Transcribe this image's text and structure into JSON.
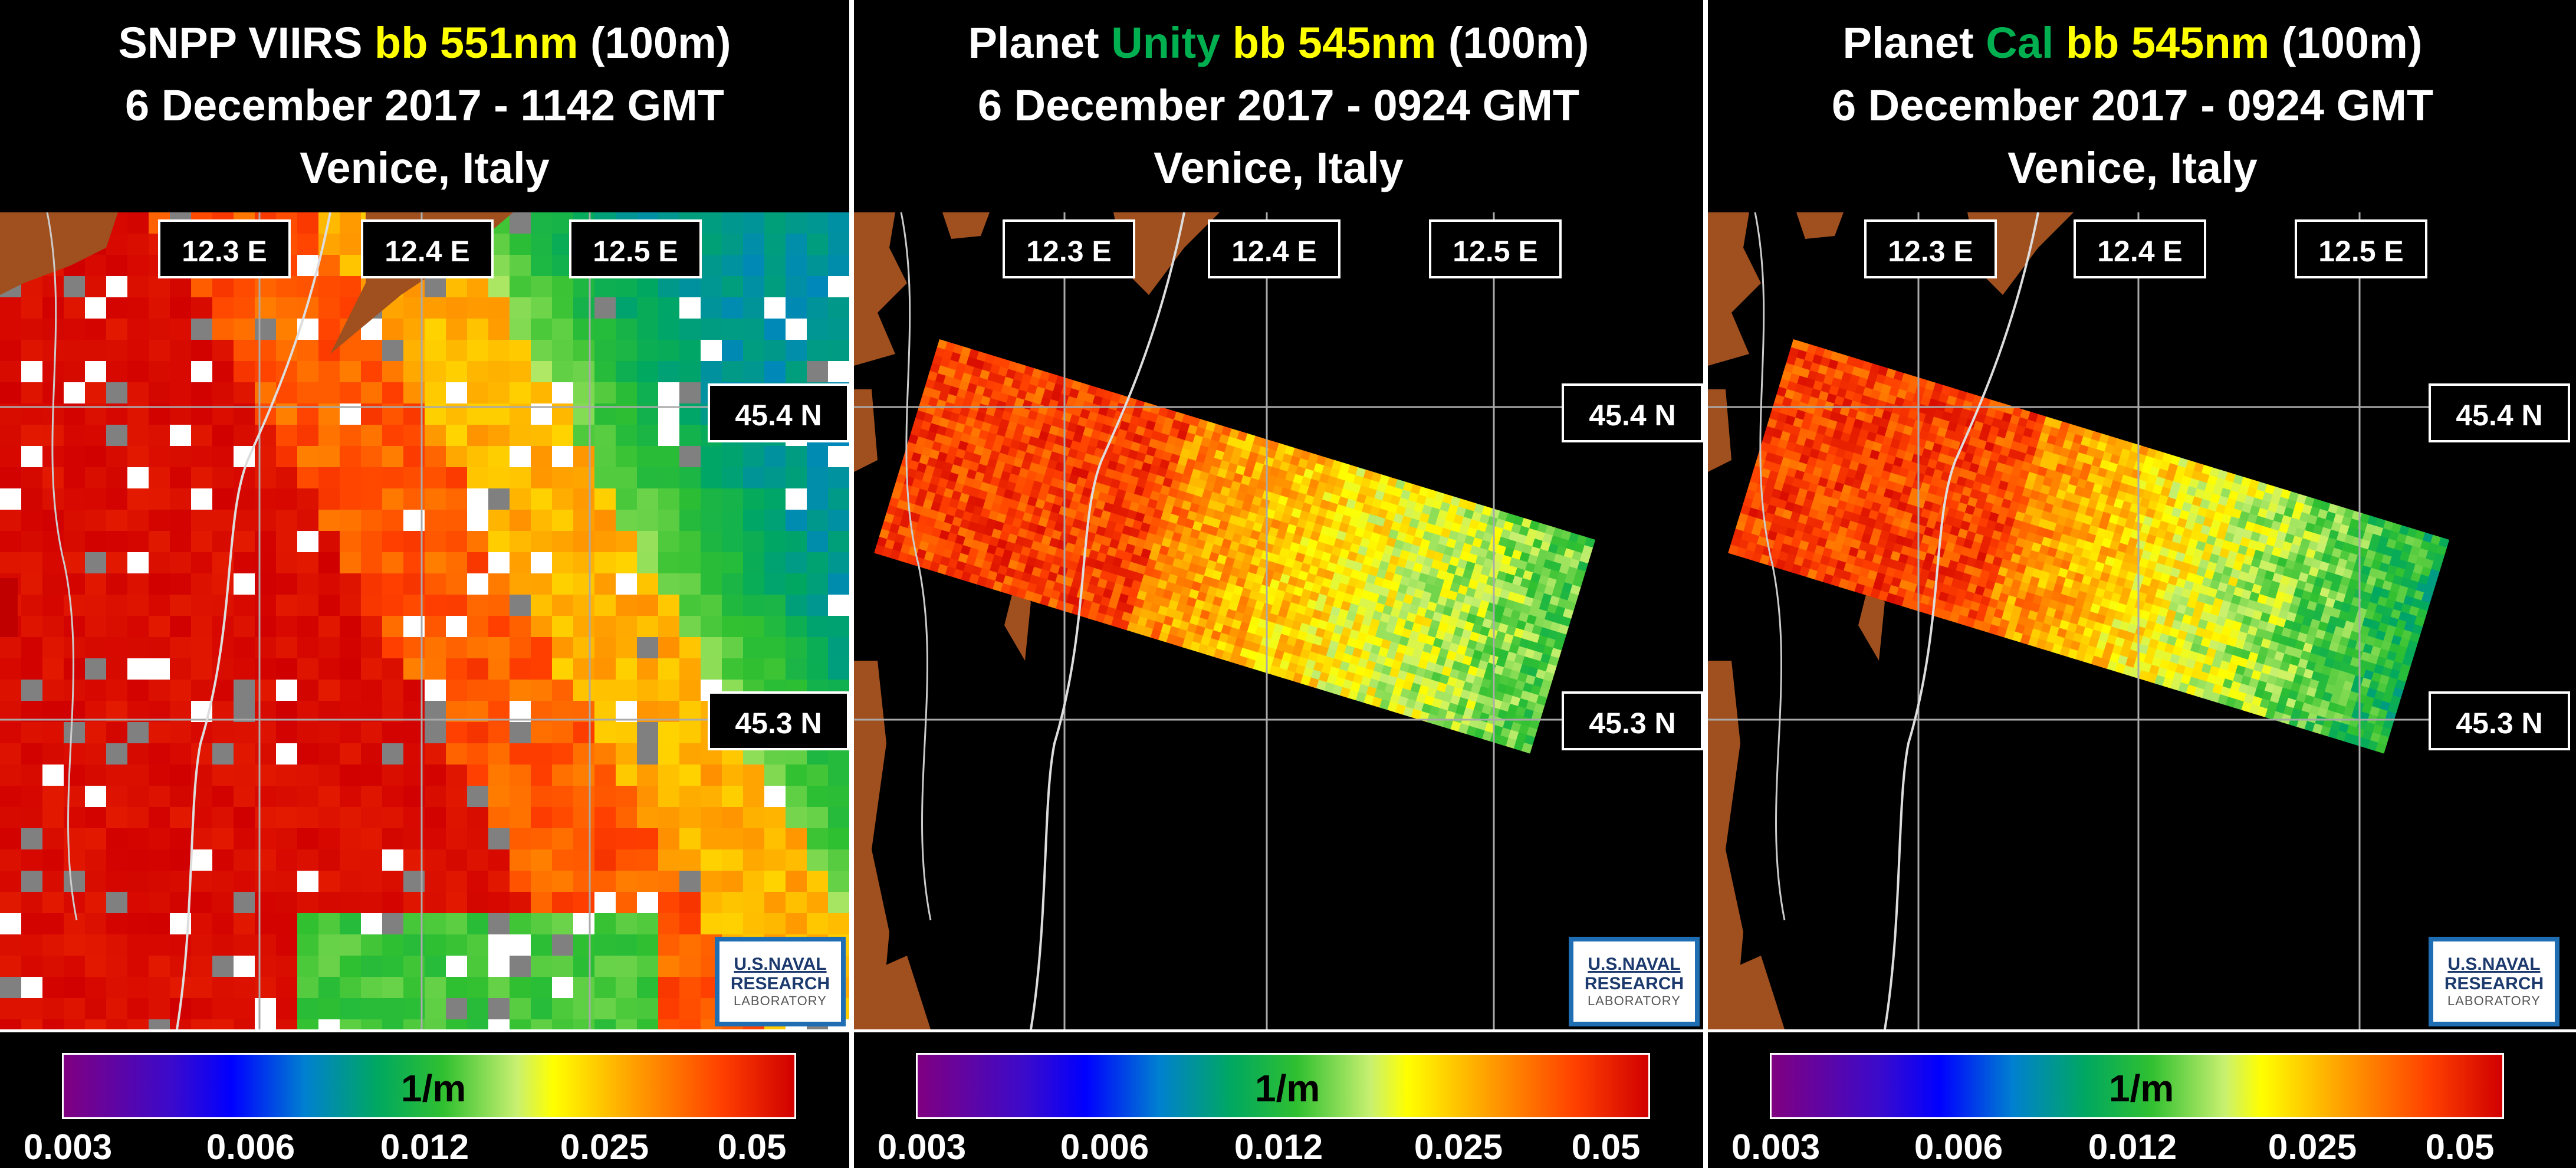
{
  "panels": [
    {
      "title_line1_a": "SNPP VIIRS ",
      "title_line1_b": "",
      "title_line1_c": "bb 551nm",
      "title_line1_d": " (100m)",
      "title_line2": "6 December 2017 - 1142 GMT",
      "title_line3": "Venice, Italy",
      "lon_labels": [
        "12.3 E",
        "12.4 E",
        "12.5 E"
      ],
      "lat_labels": [
        "45.4 N",
        "45.3 N"
      ]
    },
    {
      "title_line1_a": "Planet ",
      "title_line1_b": "Unity",
      "title_line1_c": " bb 545nm",
      "title_line1_d": " (100m)",
      "title_line2": "6 December 2017 - 0924 GMT",
      "title_line3": "Venice, Italy",
      "lon_labels": [
        "12.3 E",
        "12.4 E",
        "12.5 E"
      ],
      "lat_labels": [
        "45.4 N",
        "45.3 N"
      ]
    },
    {
      "title_line1_a": "Planet ",
      "title_line1_b": "Cal",
      "title_line1_c": " bb 545nm",
      "title_line1_d": " (100m)",
      "title_line2": "6 December 2017 - 0924 GMT",
      "title_line3": "Venice, Italy",
      "lon_labels": [
        "12.3 E",
        "12.4 E",
        "12.5 E"
      ],
      "lat_labels": [
        "45.4 N",
        "45.3 N"
      ]
    }
  ],
  "colorbar": {
    "unit": "1/m",
    "ticks": [
      "0.003",
      "0.006",
      "0.012",
      "0.025",
      "0.05"
    ]
  },
  "logo": {
    "line1": "U.S.NAVAL",
    "line2": "RESEARCH",
    "line3": "LABORATORY"
  },
  "colors": {
    "land": "#a0501e",
    "water": "#000000",
    "title_yellow": "#ffff00",
    "title_green": "#00b050",
    "logo_border": "#1f6db3"
  }
}
